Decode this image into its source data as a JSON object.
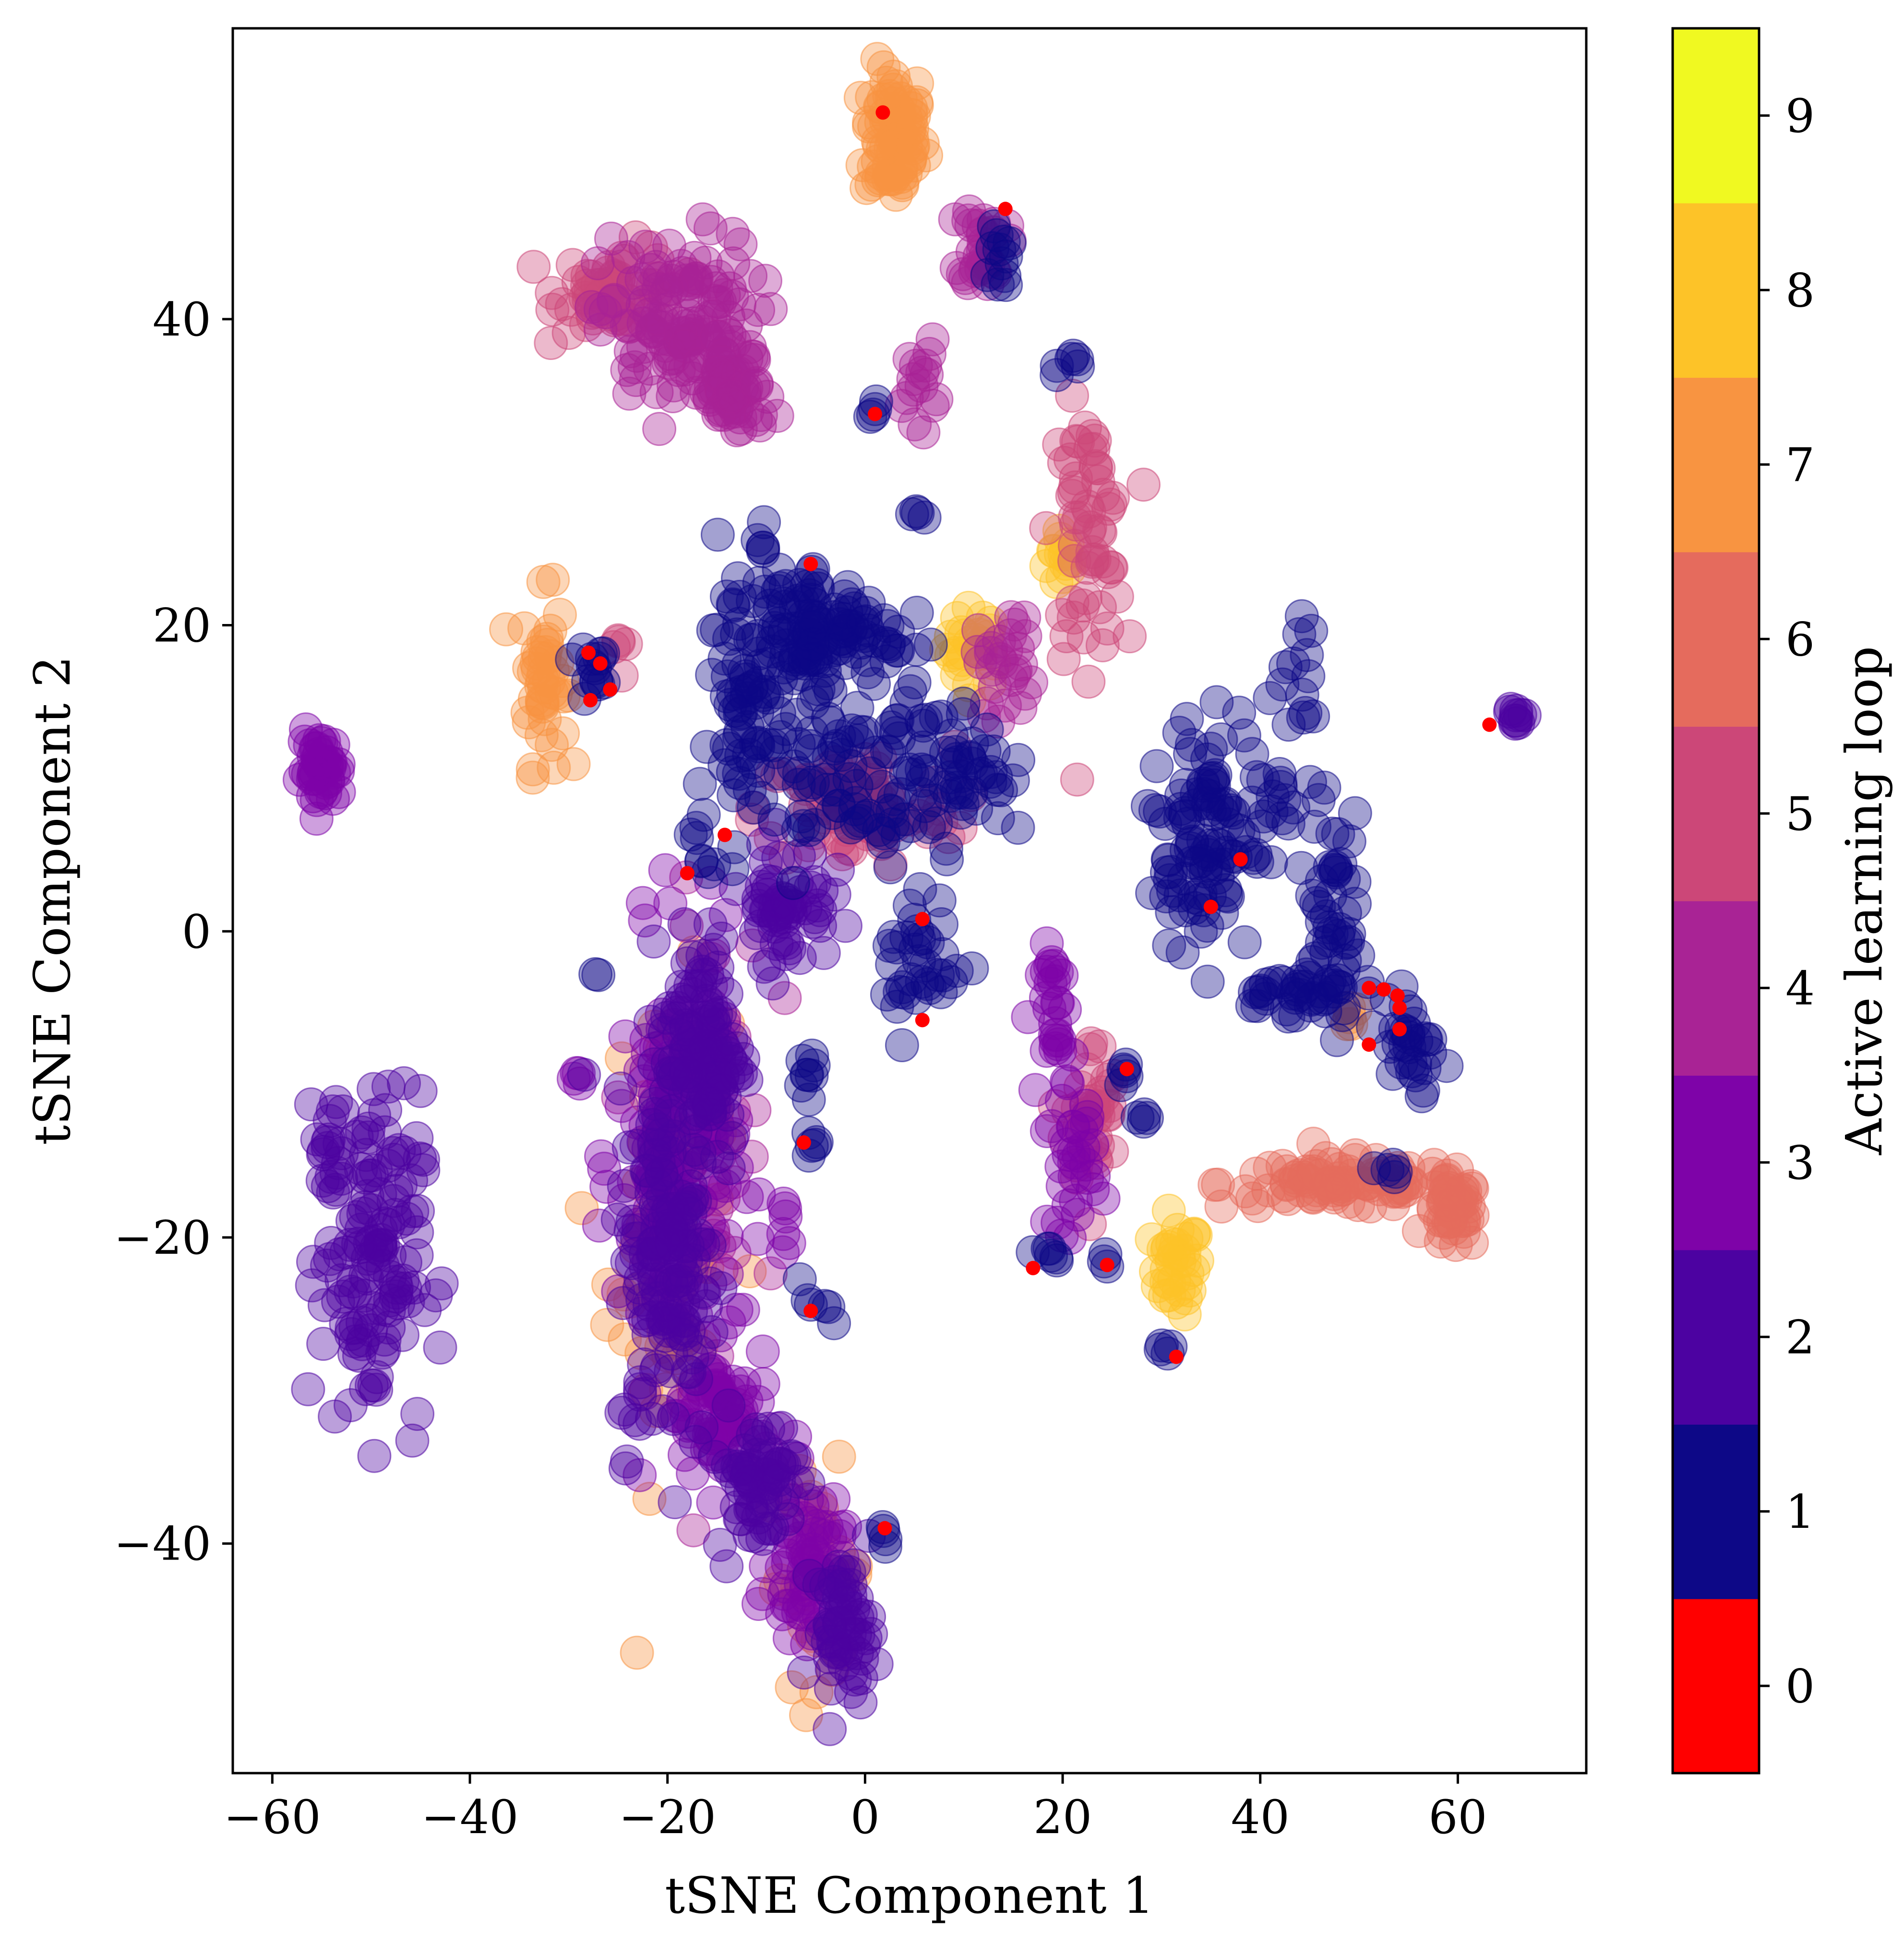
{
  "chart_data": {
    "type": "scatter",
    "xlabel": "tSNE Component 1",
    "ylabel": "tSNE Component 2",
    "xlim": [
      -64,
      73
    ],
    "ylim": [
      -55,
      59
    ],
    "x_ticks": [
      -60,
      -40,
      -20,
      0,
      20,
      40,
      60
    ],
    "y_ticks": [
      -40,
      -20,
      0,
      20,
      40
    ],
    "x_tick_labels": [
      "−60",
      "−40",
      "−20",
      "0",
      "20",
      "40",
      "60"
    ],
    "y_tick_labels": [
      "−40",
      "−20",
      "0",
      "20",
      "40"
    ],
    "grid": false,
    "colorbar": {
      "label": "Active learning loop",
      "ticks": [
        "0",
        "1",
        "2",
        "3",
        "4",
        "5",
        "6",
        "7",
        "8",
        "9"
      ],
      "colors": [
        "#ff0000",
        "#0d0887",
        "#4c02a1",
        "#7e03a8",
        "#a92395",
        "#cc4778",
        "#e56b5d",
        "#f89441",
        "#fdc328",
        "#f0f921"
      ]
    },
    "clusters": [
      {
        "loop": 7,
        "x": 3,
        "y": 52,
        "sx": 1.5,
        "sy": 2.3,
        "n": 90
      },
      {
        "loop": 4,
        "x": 12,
        "y": 45,
        "sx": 1.1,
        "sy": 1.4,
        "n": 30
      },
      {
        "loop": 1,
        "x": 13.5,
        "y": 44.5,
        "sx": 0.6,
        "sy": 1.5,
        "n": 12
      },
      {
        "loop": 5,
        "x": -25,
        "y": 42,
        "sx": 3,
        "sy": 1.4,
        "n": 60
      },
      {
        "loop": 4,
        "x": -19,
        "y": 39.5,
        "sx": 4,
        "sy": 3,
        "n": 140
      },
      {
        "loop": 4,
        "x": -13,
        "y": 35,
        "sx": 1.8,
        "sy": 1.4,
        "n": 50
      },
      {
        "loop": 4,
        "x": 5.5,
        "y": 36,
        "sx": 0.8,
        "sy": 1.3,
        "n": 16
      },
      {
        "loop": 1,
        "x": 1,
        "y": 34,
        "sx": 0.4,
        "sy": 0.4,
        "n": 4
      },
      {
        "loop": 1,
        "x": 21,
        "y": 37,
        "sx": 0.8,
        "sy": 0.4,
        "n": 6
      },
      {
        "loop": 1,
        "x": 5.5,
        "y": 27,
        "sx": 0.3,
        "sy": 0.8,
        "n": 4
      },
      {
        "loop": 5,
        "x": 22.5,
        "y": 26,
        "sx": 1.8,
        "sy": 4,
        "n": 60
      },
      {
        "loop": 8,
        "x": 20,
        "y": 24.5,
        "sx": 0.8,
        "sy": 1.2,
        "n": 14
      },
      {
        "loop": 1,
        "x": -10.5,
        "y": 25.5,
        "sx": 0.5,
        "sy": 0.6,
        "n": 5
      },
      {
        "loop": 1,
        "x": -5.5,
        "y": 23,
        "sx": 0.4,
        "sy": 0.6,
        "n": 4
      },
      {
        "loop": 8,
        "x": 11,
        "y": 18.5,
        "sx": 1.4,
        "sy": 1.3,
        "n": 26
      },
      {
        "loop": 4,
        "x": 14.5,
        "y": 17.5,
        "sx": 1.6,
        "sy": 1.8,
        "n": 28
      },
      {
        "loop": 1,
        "x": -6,
        "y": 19.5,
        "sx": 4.5,
        "sy": 1.8,
        "n": 130
      },
      {
        "loop": 1,
        "x": -12,
        "y": 14,
        "sx": 2,
        "sy": 2.2,
        "n": 40
      },
      {
        "loop": 7,
        "x": -32.5,
        "y": 16.5,
        "sx": 1.1,
        "sy": 2.8,
        "n": 45
      },
      {
        "loop": 1,
        "x": -28,
        "y": 17.5,
        "sx": 1.2,
        "sy": 1,
        "n": 14
      },
      {
        "loop": 5,
        "x": -25,
        "y": 18.5,
        "sx": 0.6,
        "sy": 0.8,
        "n": 5
      },
      {
        "loop": 3,
        "x": -55,
        "y": 10.5,
        "sx": 1,
        "sy": 1.2,
        "n": 45
      },
      {
        "loop": 5,
        "x": -1,
        "y": 8,
        "sx": 5,
        "sy": 2,
        "n": 90
      },
      {
        "loop": 1,
        "x": -2,
        "y": 10,
        "sx": 6.5,
        "sy": 3.2,
        "n": 100
      },
      {
        "loop": 1,
        "x": 9.5,
        "y": 11,
        "sx": 2.5,
        "sy": 2.5,
        "n": 45
      },
      {
        "loop": 1,
        "x": -16,
        "y": 5,
        "sx": 1.8,
        "sy": 1.2,
        "n": 10
      },
      {
        "loop": 2,
        "x": 66,
        "y": 14,
        "sx": 0.4,
        "sy": 0.3,
        "n": 10
      },
      {
        "loop": 1,
        "x": 44,
        "y": 17,
        "sx": 0.8,
        "sy": 1.8,
        "n": 12
      },
      {
        "loop": 1,
        "x": 38,
        "y": 8.5,
        "sx": 4.5,
        "sy": 3,
        "n": 80
      },
      {
        "loop": 1,
        "x": 33,
        "y": 4,
        "sx": 2.2,
        "sy": 3,
        "n": 40
      },
      {
        "loop": 1,
        "x": 47,
        "y": 2,
        "sx": 1.2,
        "sy": 3,
        "n": 40
      },
      {
        "loop": 1,
        "x": 43.5,
        "y": -4,
        "sx": 3,
        "sy": 0.8,
        "n": 40
      },
      {
        "loop": 1,
        "x": 55,
        "y": -7.5,
        "sx": 1.5,
        "sy": 2.2,
        "n": 30
      },
      {
        "loop": 7,
        "x": 49,
        "y": -5.5,
        "sx": 0.6,
        "sy": 0.6,
        "n": 5
      },
      {
        "loop": 1,
        "x": 6,
        "y": -2,
        "sx": 2,
        "sy": 2.3,
        "n": 35
      },
      {
        "loop": 1,
        "x": -6,
        "y": -8.5,
        "sx": 0.5,
        "sy": 0.8,
        "n": 8
      },
      {
        "loop": 1,
        "x": -5,
        "y": -14,
        "sx": 0.5,
        "sy": 0.4,
        "n": 5
      },
      {
        "loop": 3,
        "x": 19.5,
        "y": -6,
        "sx": 0.8,
        "sy": 2.5,
        "n": 30
      },
      {
        "loop": 5,
        "x": 23,
        "y": -12,
        "sx": 1.3,
        "sy": 2.5,
        "n": 40
      },
      {
        "loop": 3,
        "x": 21,
        "y": -15,
        "sx": 1.2,
        "sy": 2.3,
        "n": 30
      },
      {
        "loop": 1,
        "x": 26,
        "y": -9,
        "sx": 0.5,
        "sy": 0.6,
        "n": 5
      },
      {
        "loop": 1,
        "x": 28.5,
        "y": -12.5,
        "sx": 0.5,
        "sy": 0.5,
        "n": 4
      },
      {
        "loop": 6,
        "x": 48,
        "y": -16.5,
        "sx": 6,
        "sy": 0.8,
        "n": 90
      },
      {
        "loop": 6,
        "x": 59.5,
        "y": -18.5,
        "sx": 1.3,
        "sy": 1.2,
        "n": 45
      },
      {
        "loop": 1,
        "x": 53,
        "y": -15.5,
        "sx": 1,
        "sy": 0.4,
        "n": 5
      },
      {
        "loop": 8,
        "x": 31.5,
        "y": -22,
        "sx": 1.2,
        "sy": 1.5,
        "n": 35
      },
      {
        "loop": 1,
        "x": 18,
        "y": -21.5,
        "sx": 0.8,
        "sy": 0.4,
        "n": 6
      },
      {
        "loop": 1,
        "x": 24.5,
        "y": -21.5,
        "sx": 0.3,
        "sy": 0.3,
        "n": 3
      },
      {
        "loop": 1,
        "x": 30.5,
        "y": -27.5,
        "sx": 0.5,
        "sy": 0.3,
        "n": 4
      },
      {
        "loop": 3,
        "x": -8,
        "y": -19.5,
        "sx": 0.4,
        "sy": 0.9,
        "n": 6
      },
      {
        "loop": 1,
        "x": -5,
        "y": -24.5,
        "sx": 0.8,
        "sy": 0.8,
        "n": 6
      },
      {
        "loop": 2,
        "x": -50,
        "y": -21.5,
        "sx": 2.5,
        "sy": 5.5,
        "n": 130
      },
      {
        "loop": 2,
        "x": -54,
        "y": -14.5,
        "sx": 0.8,
        "sy": 2,
        "n": 20
      },
      {
        "loop": 3,
        "x": -29,
        "y": -9.5,
        "sx": 0.4,
        "sy": 0.4,
        "n": 4
      },
      {
        "loop": 1,
        "x": -27,
        "y": -3,
        "sx": 0.2,
        "sy": 0.2,
        "n": 2
      },
      {
        "loop": 3,
        "x": -19,
        "y": -15,
        "sx": 3,
        "sy": 7,
        "n": 160
      },
      {
        "loop": 2,
        "x": -16.5,
        "y": -8,
        "sx": 2,
        "sy": 4,
        "n": 120
      },
      {
        "loop": 2,
        "x": -20,
        "y": -22,
        "sx": 2.5,
        "sy": 6,
        "n": 140
      },
      {
        "loop": 7,
        "x": -20,
        "y": -20,
        "sx": 3,
        "sy": 8,
        "n": 60
      },
      {
        "loop": 4,
        "x": -16,
        "y": -14,
        "sx": 3,
        "sy": 8,
        "n": 50
      },
      {
        "loop": 2,
        "x": -8,
        "y": 2,
        "sx": 2.2,
        "sy": 2,
        "n": 60
      },
      {
        "loop": 3,
        "x": -14.5,
        "y": -32,
        "sx": 2.5,
        "sy": 2.5,
        "n": 70
      },
      {
        "loop": 2,
        "x": -11,
        "y": -36,
        "sx": 2,
        "sy": 2.3,
        "n": 60
      },
      {
        "loop": 3,
        "x": -6,
        "y": -41,
        "sx": 1.8,
        "sy": 2.5,
        "n": 70
      },
      {
        "loop": 2,
        "x": -2,
        "y": -45.5,
        "sx": 1.5,
        "sy": 2.2,
        "n": 60
      },
      {
        "loop": 7,
        "x": -5,
        "y": -42,
        "sx": 2.5,
        "sy": 3.5,
        "n": 30
      },
      {
        "loop": 1,
        "x": 2,
        "y": -39.5,
        "sx": 0.3,
        "sy": 0.7,
        "n": 4
      }
    ],
    "red_points": [
      [
        1.8,
        53.5
      ],
      [
        14.2,
        47.2
      ],
      [
        1,
        33.8
      ],
      [
        -5.5,
        24
      ],
      [
        -28,
        18.2
      ],
      [
        -26.8,
        17.5
      ],
      [
        -25.8,
        15.8
      ],
      [
        -27.8,
        15.1
      ],
      [
        -14.2,
        6.3
      ],
      [
        -18,
        3.8
      ],
      [
        5.8,
        0.8
      ],
      [
        5.8,
        -5.8
      ],
      [
        -6.2,
        -13.8
      ],
      [
        -5.5,
        -24.8
      ],
      [
        2,
        -39
      ],
      [
        35,
        1.6
      ],
      [
        38,
        4.7
      ],
      [
        26.5,
        -9
      ],
      [
        17,
        -22
      ],
      [
        24.5,
        -21.8
      ],
      [
        31.5,
        -27.8
      ],
      [
        51,
        -3.7
      ],
      [
        52.5,
        -3.8
      ],
      [
        53.9,
        -4.2
      ],
      [
        54.1,
        -5
      ],
      [
        54.1,
        -6.4
      ],
      [
        51,
        -7.4
      ],
      [
        63.2,
        13.5
      ]
    ]
  }
}
